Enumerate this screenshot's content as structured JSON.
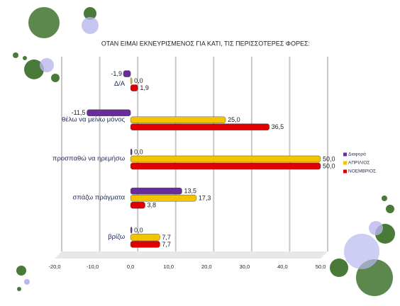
{
  "chart_data": {
    "type": "hbar",
    "title": "ΟΤΑΝ ΕΙΜΑΙ ΕΚΝΕΥΡΙΣΜΕΝΟΣ ΓΙΑ ΚΑΤΙ, ΤΙΣ ΠΕΡΙΣΣΟΤΕΡΕΣ ΦΟΡΕΣ:",
    "categories": [
      "Δ/Α",
      "θέλω να μείνω μόνος",
      "προσπαθώ να ηρεμήσω",
      "σπάζω πράγματα",
      "βρίζω"
    ],
    "series": [
      {
        "name": "Διαφορά",
        "color": "#6a2c9a",
        "values": [
          -1.9,
          -11.5,
          0.0,
          13.5,
          0.0
        ],
        "value_labels": [
          "-1,9",
          "-11,5",
          "0,0",
          "13,5",
          "0,0"
        ]
      },
      {
        "name": "ΑΠΡΙΛΙΟΣ",
        "color": "#f5c400",
        "values": [
          0.0,
          25.0,
          50.0,
          17.3,
          7.7
        ],
        "value_labels": [
          "0,0",
          "25,0",
          "50,0",
          "17,3",
          "7,7"
        ]
      },
      {
        "name": "ΝΟΕΜΒΡΙΟΣ",
        "color": "#e00000",
        "values": [
          1.9,
          36.5,
          50.0,
          3.8,
          7.7
        ],
        "value_labels": [
          "1,9",
          "36,5",
          "50,0",
          "3,8",
          "7,7"
        ]
      }
    ],
    "xlim": [
      -20,
      50
    ],
    "xticks": [
      {
        "value": -20,
        "label": "-20,0"
      },
      {
        "value": -10,
        "label": "-10,0"
      },
      {
        "value": 0,
        "label": "0,0"
      },
      {
        "value": 10,
        "label": "10,0"
      },
      {
        "value": 20,
        "label": "20,0"
      },
      {
        "value": 30,
        "label": "30,0"
      },
      {
        "value": 40,
        "label": "40,0"
      },
      {
        "value": 50,
        "label": "50,0"
      }
    ],
    "grid": true,
    "legend": "right"
  }
}
